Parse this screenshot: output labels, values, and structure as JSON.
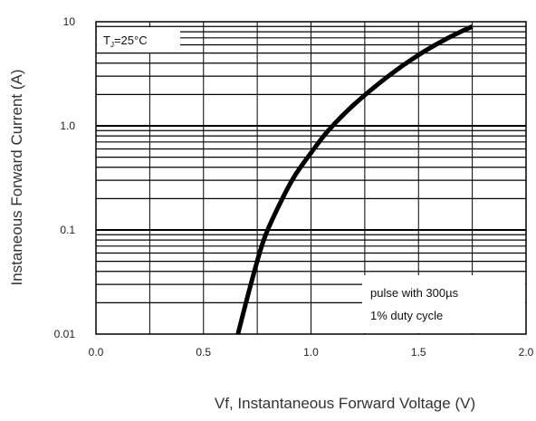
{
  "chart_data": {
    "type": "line",
    "title": "",
    "xlabel": "Vf, Instantaneous Forward  Voltage (V)",
    "ylabel": "Instaneous Forward Current (A)",
    "x_scale": "linear",
    "y_scale": "log",
    "xlim": [
      0.0,
      2.0
    ],
    "ylim": [
      0.01,
      10
    ],
    "x_ticks": [
      "0.0",
      "0.5",
      "1.0",
      "1.5",
      "2.0"
    ],
    "x_tick_values": [
      0.0,
      0.5,
      1.0,
      1.5,
      2.0
    ],
    "y_ticks": [
      "0.01",
      "0.1",
      "1.0",
      "10"
    ],
    "y_tick_values": [
      0.01,
      0.1,
      1.0,
      10
    ],
    "grid": true,
    "series": [
      {
        "name": "",
        "color": "#000000",
        "x": [
          0.66,
          0.72,
          0.78,
          0.85,
          0.92,
          1.0,
          1.08,
          1.2,
          1.35,
          1.5,
          1.65,
          1.75
        ],
        "y": [
          0.01,
          0.03,
          0.08,
          0.17,
          0.32,
          0.55,
          0.9,
          1.6,
          2.9,
          4.8,
          7.2,
          9.0
        ]
      }
    ],
    "annotations": {
      "tj_main": "T",
      "tj_sub": "J",
      "tj_rest": "=25°C",
      "pulse_line1": "pulse with 300µs",
      "pulse_line2": "1% duty cycle"
    }
  }
}
